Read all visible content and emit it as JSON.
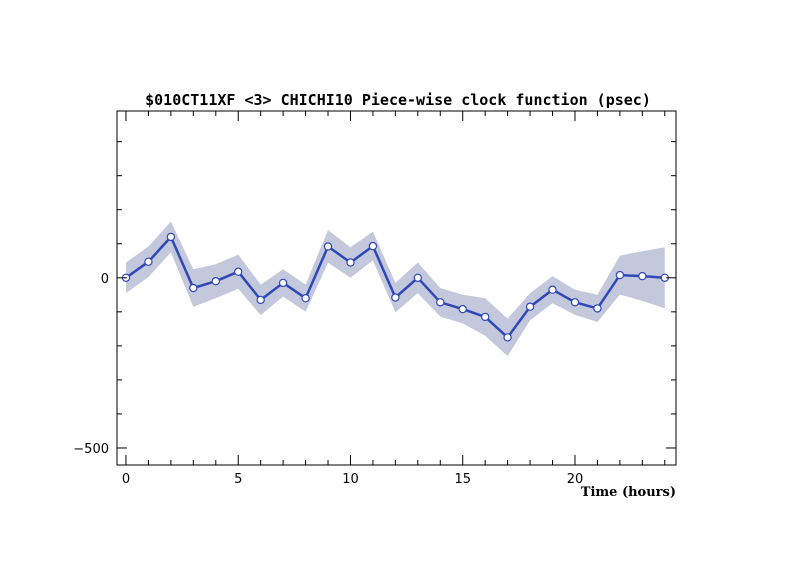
{
  "chart_data": {
    "type": "line",
    "title": "$010CT11XF <3>  CHICHI10  Piece-wise clock function (psec)",
    "xlabel": "Time (hours)",
    "ylabel": "",
    "xlim": [
      -0.4,
      24.5
    ],
    "ylim": [
      -550,
      490
    ],
    "x_ticks": [
      0,
      5,
      10,
      15,
      20
    ],
    "y_ticks": [
      0,
      -500
    ],
    "x_tick_labels": [
      "0",
      "5",
      "10",
      "15",
      "20"
    ],
    "y_tick_labels": [
      "0",
      "−500"
    ],
    "grid": false,
    "series": [
      {
        "x": [
          0,
          1,
          2,
          3,
          4,
          5,
          6,
          7,
          8,
          9,
          10,
          11,
          12,
          13,
          14,
          15,
          16,
          17,
          18,
          19,
          20,
          21,
          22,
          23,
          24
        ],
        "values": [
          0,
          47,
          120,
          -30,
          -10,
          18,
          -65,
          -15,
          -60,
          92,
          45,
          93,
          -58,
          0,
          -72,
          -92,
          -115,
          -175,
          -85,
          -35,
          -72,
          -90,
          8,
          5,
          0
        ],
        "band_upper": [
          45,
          92,
          165,
          25,
          40,
          68,
          -20,
          25,
          -20,
          140,
          90,
          135,
          -15,
          45,
          -30,
          -50,
          -60,
          -120,
          -45,
          5,
          -35,
          -50,
          65,
          78,
          90
        ],
        "band_lower": [
          -45,
          2,
          75,
          -85,
          -60,
          -32,
          -110,
          -55,
          -100,
          44,
          0,
          51,
          -101,
          -45,
          -114,
          -134,
          -170,
          -230,
          -125,
          -75,
          -109,
          -130,
          -49,
          -68,
          -90
        ]
      }
    ],
    "colors": {
      "line": "#2f48b8",
      "band": "#c4c8dc",
      "marker_fill": "#ffffff"
    }
  }
}
